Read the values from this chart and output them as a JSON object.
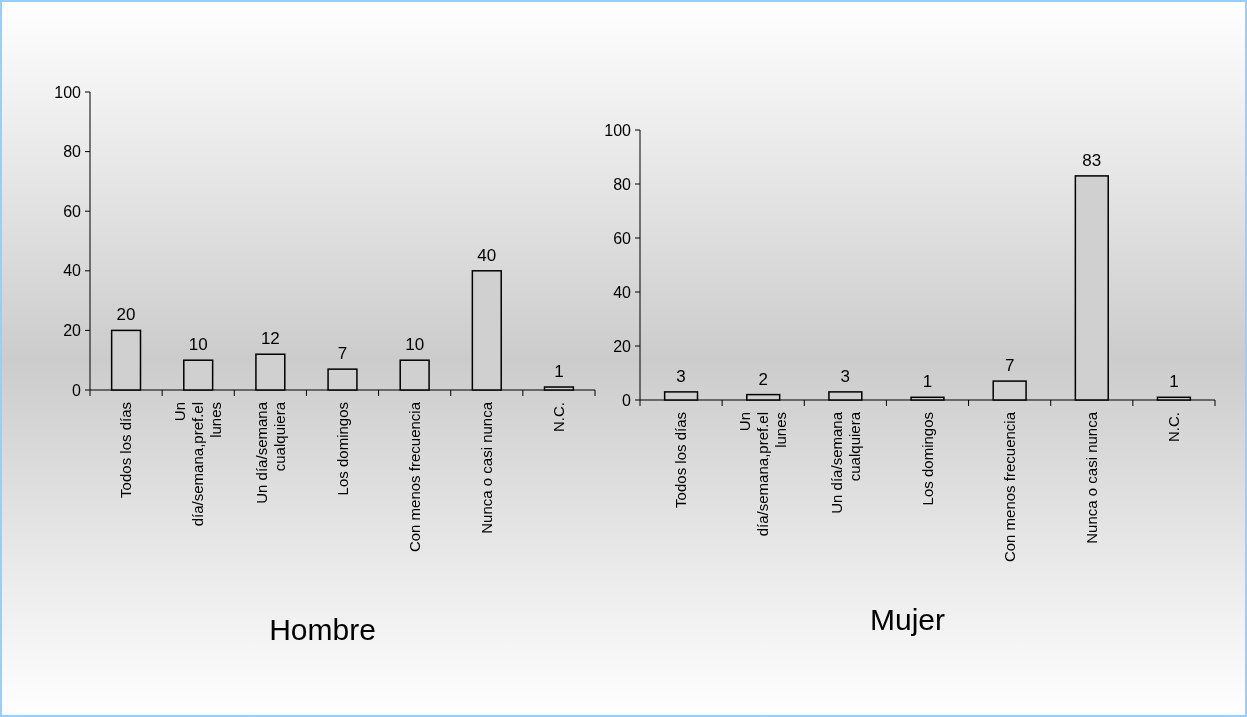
{
  "chart_data": [
    {
      "type": "bar",
      "title": "Hombre",
      "categories": [
        "Todos los días",
        "Un día/semana,pref.el lunes",
        "Un día/semana cualquiera",
        "Los domingos",
        "Con menos frecuencia",
        "Nunca o casi nunca",
        "N.C."
      ],
      "values": [
        20,
        10,
        12,
        7,
        10,
        40,
        1
      ],
      "color": "#d0d0d0",
      "ylim": [
        0,
        100
      ],
      "yticks": [
        0,
        20,
        40,
        60,
        80,
        100
      ],
      "data_labels": true
    },
    {
      "type": "bar",
      "title": "Mujer",
      "categories": [
        "Todos los días",
        "Un día/semana,pref.el lunes",
        "Un día/semana cualquiera",
        "Los domingos",
        "Con menos frecuencia",
        "Nunca o casi nunca",
        "N.C."
      ],
      "values": [
        3,
        2,
        3,
        1,
        7,
        83,
        1
      ],
      "color": "#d0d0d0",
      "ylim": [
        0,
        100
      ],
      "yticks": [
        0,
        20,
        40,
        60,
        80,
        100
      ],
      "data_labels": true
    }
  ]
}
